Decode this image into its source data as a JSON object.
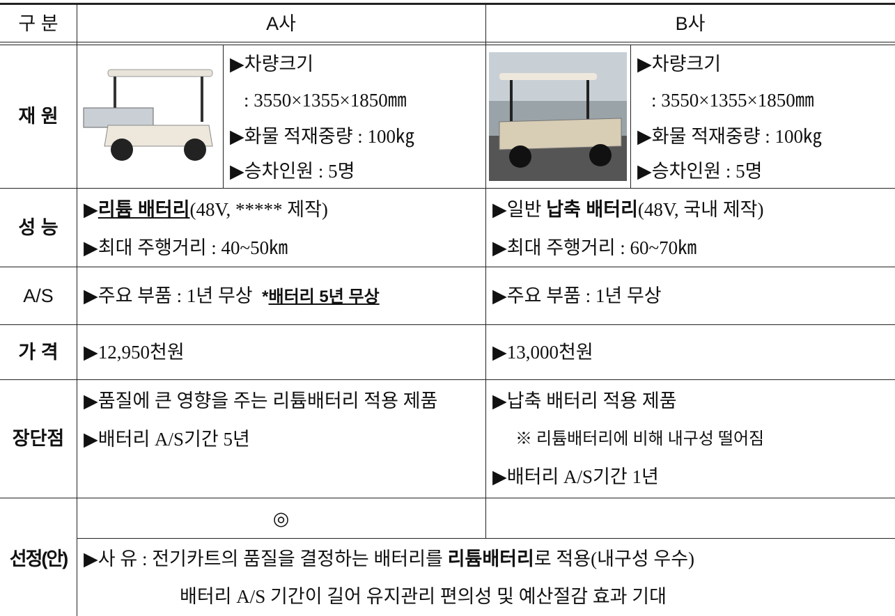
{
  "header": {
    "label": "구 분",
    "a": "A사",
    "b": "B사"
  },
  "specs": {
    "label": "재 원",
    "a": [
      "▶차량크기",
      ": 3550×1355×1850㎜",
      "▶화물 적재중량 : 100㎏",
      "▶승차인원 : 5명"
    ],
    "b": [
      "▶차량크기",
      ": 3550×1355×1850㎜",
      "▶화물 적재중량 : 100㎏",
      "▶승차인원 : 5명"
    ]
  },
  "performance": {
    "label": "성 능",
    "a": [
      [
        "▶",
        "리튬 배터리",
        "(48V, ***** 제작)"
      ],
      [
        "▶최대 주행거리 : 40~50㎞"
      ]
    ],
    "b": [
      [
        "▶일반 ",
        "납축 배터리",
        "(48V, 국내 제작)"
      ],
      [
        "▶최대 주행거리 : 60~70㎞"
      ]
    ]
  },
  "service": {
    "label": "A/S",
    "a": [
      "▶주요 부품 : 1년 무상",
      "*",
      "배터리 5년 무상"
    ],
    "b": [
      "▶주요 부품 : 1년 무상"
    ]
  },
  "price": {
    "label": "가 격",
    "a": "▶12,950천원",
    "b": "▶13,000천원"
  },
  "pros_cons": {
    "label": "장단점",
    "a": [
      "▶품질에 큰 영향을 주는 리튬배터리 적용 제품",
      "▶배터리 A/S기간 5년"
    ],
    "b": [
      "▶납축 배터리 적용 제품",
      "※ 리튬배터리에 비해 내구성 떨어짐",
      "▶배터리 A/S기간 1년"
    ]
  },
  "selection": {
    "label": "선정(안)",
    "a_mark": "◎",
    "reason": [
      [
        "▶사 유 : 전기카트의 품질을 결정하는 배터리를 ",
        "리튬배터리",
        "로 적용(내구성 우수)"
      ],
      "배터리 A/S 기간이 길어 유지관리 편의성 및 예산절감 효과 기대"
    ]
  }
}
